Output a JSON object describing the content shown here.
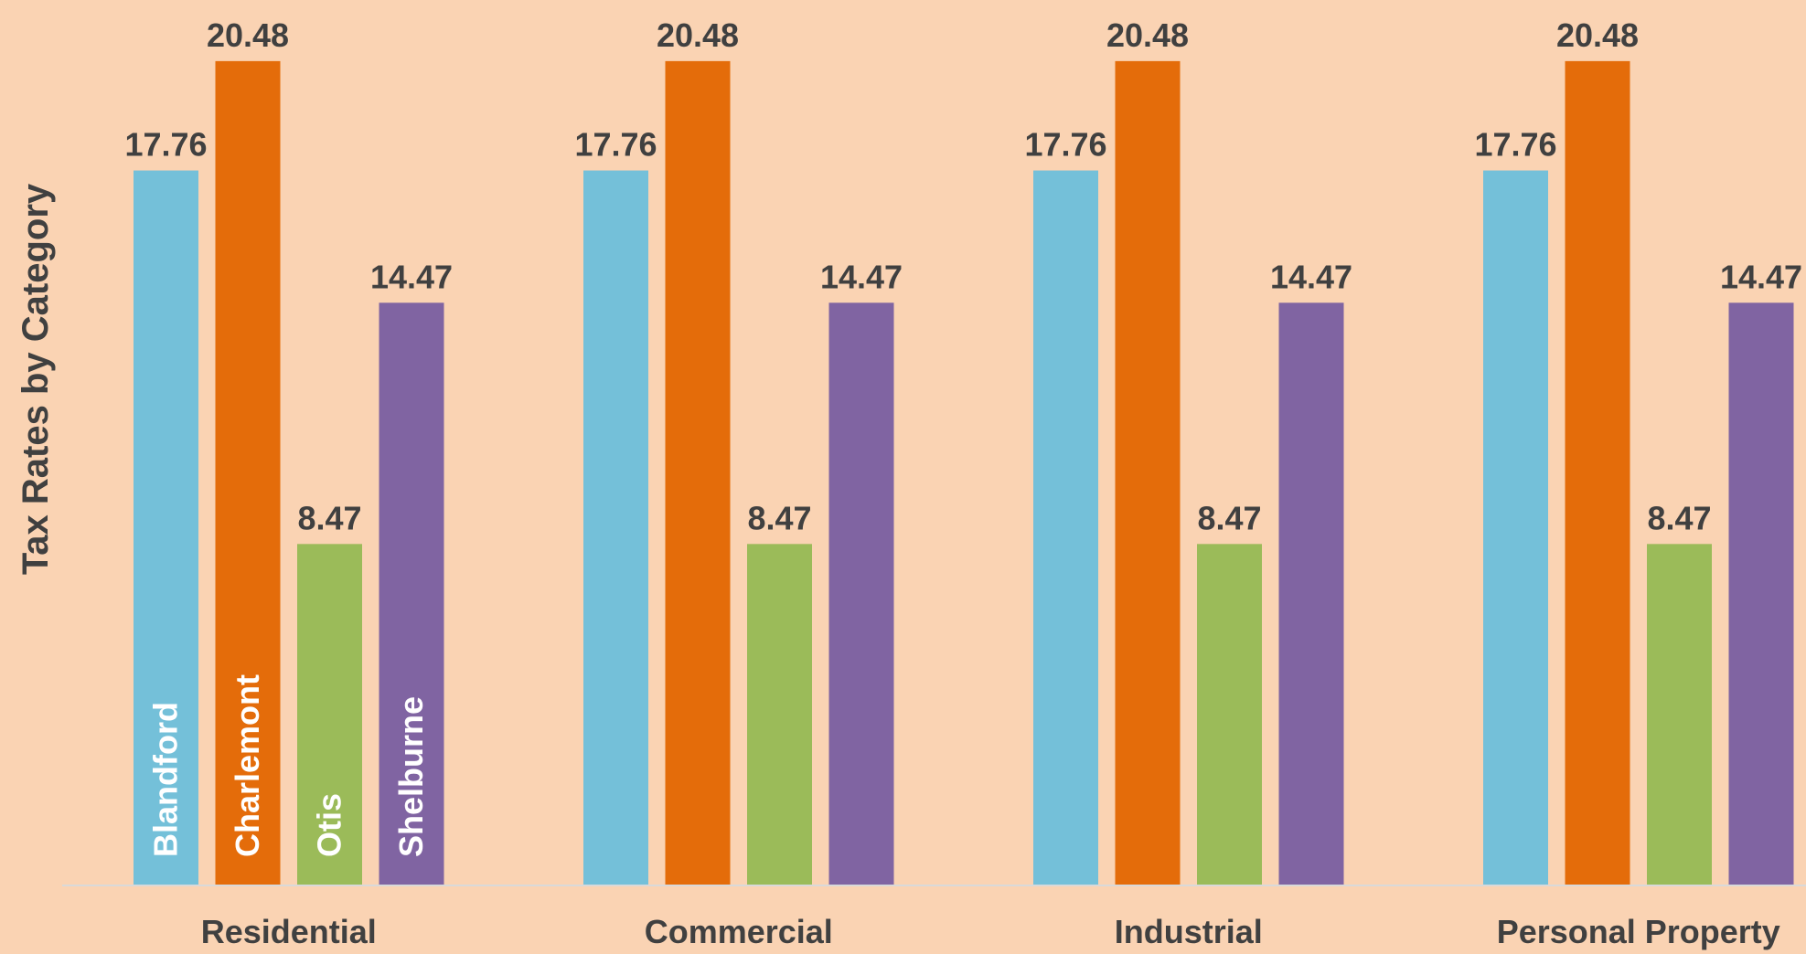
{
  "chart_data": {
    "type": "bar",
    "title": "",
    "xlabel": "",
    "ylabel": "Tax Rates by Category",
    "ylim": [
      0,
      22
    ],
    "grid": false,
    "legend": "none",
    "categories": [
      "Residential",
      "Commercial",
      "Industrial",
      "Personal Property"
    ],
    "series": [
      {
        "name": "Blandford",
        "values": [
          17.76,
          17.76,
          17.76,
          17.76
        ],
        "color": "#74c0d9"
      },
      {
        "name": "Charlemont",
        "values": [
          20.48,
          20.48,
          20.48,
          20.48
        ],
        "color": "#e46c0a"
      },
      {
        "name": "Otis",
        "values": [
          8.47,
          8.47,
          8.47,
          8.47
        ],
        "color": "#9bbb59"
      },
      {
        "name": "Shelburne",
        "values": [
          14.47,
          14.47,
          14.47,
          14.47
        ],
        "color": "#8064a2"
      }
    ],
    "value_labels": [
      [
        "17.76",
        "17.76",
        "17.76",
        "17.76"
      ],
      [
        "20.48",
        "20.48",
        "20.48",
        "20.48"
      ],
      [
        "8.47",
        "8.47",
        "8.47",
        "8.47"
      ],
      [
        "14.47",
        "14.47",
        "14.47",
        "14.47"
      ]
    ],
    "series_name_labels_in_category": 0
  },
  "colors": {
    "background": "#fad3b3",
    "text": "#404040",
    "axis_line": "#d9d9d9"
  }
}
